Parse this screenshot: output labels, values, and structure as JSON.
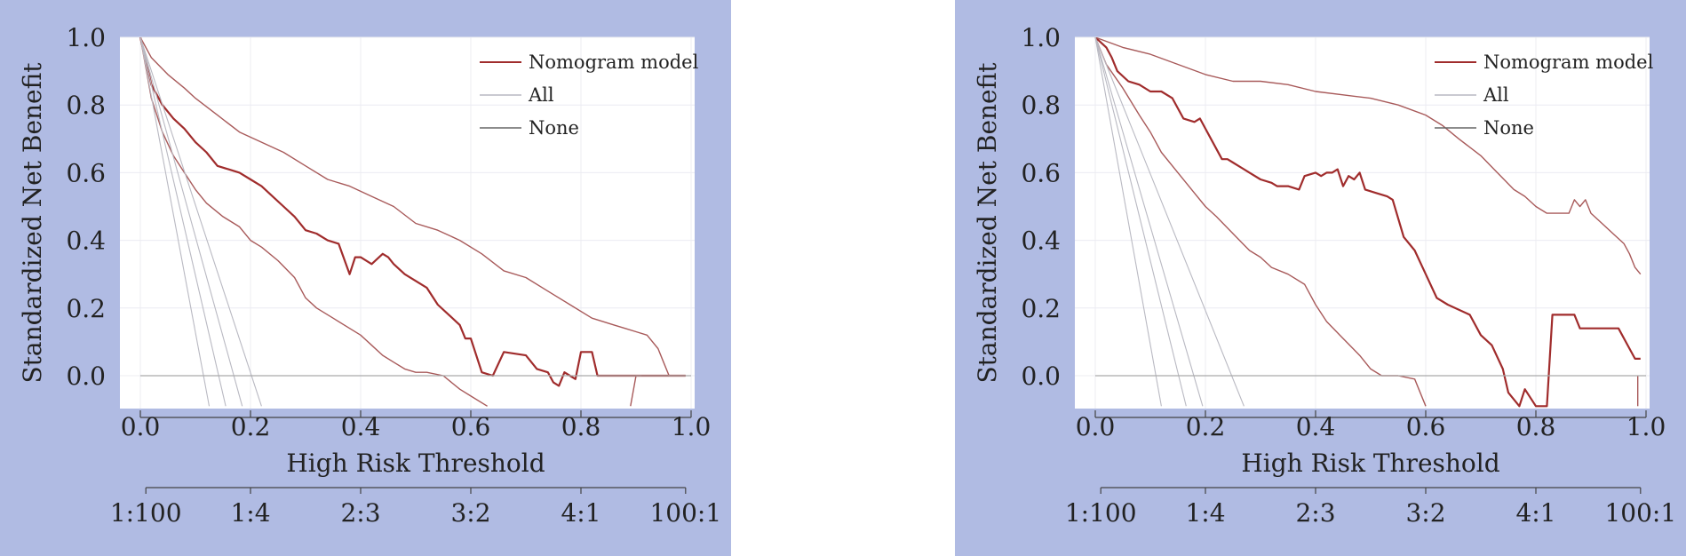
{
  "chart_data": [
    {
      "type": "line",
      "title": "",
      "xlabel": "High Risk Threshold",
      "ylabel": "Standardized Net Benefit",
      "xlim": [
        0,
        1
      ],
      "ylim": [
        -0.09,
        1.0
      ],
      "xticks": [
        "0.0",
        "0.2",
        "0.4",
        "0.6",
        "0.8",
        "1.0"
      ],
      "yticks": [
        "0.0",
        "0.2",
        "0.4",
        "0.6",
        "0.8",
        "1.0"
      ],
      "cost_benefit_label": "",
      "cost_benefit_ticks": [
        "1:100",
        "1:4",
        "2:3",
        "3:2",
        "4:1",
        "100:1"
      ],
      "cost_benefit_positions": [
        0.01,
        0.2,
        0.4,
        0.6,
        0.8,
        0.99
      ],
      "grid": true,
      "legend_position": "top-right",
      "legend": [
        {
          "label": "Nomogram model",
          "color": "#a02c2c"
        },
        {
          "label": "All",
          "color": "#b9b9c2"
        },
        {
          "label": "None",
          "color": "#666666"
        }
      ],
      "colors": {
        "model": "#a02c2c",
        "model_ci": "#a85a5a",
        "all": "#b9b9c2",
        "none": "#aaaaaa"
      },
      "series": [
        {
          "role": "model",
          "x": [
            0,
            0.02,
            0.04,
            0.06,
            0.08,
            0.1,
            0.12,
            0.14,
            0.16,
            0.18,
            0.2,
            0.22,
            0.24,
            0.26,
            0.28,
            0.3,
            0.32,
            0.34,
            0.36,
            0.38,
            0.39,
            0.4,
            0.42,
            0.44,
            0.45,
            0.46,
            0.48,
            0.5,
            0.52,
            0.54,
            0.56,
            0.58,
            0.59,
            0.6,
            0.62,
            0.64,
            0.66,
            0.7,
            0.72,
            0.74,
            0.75,
            0.76,
            0.77,
            0.78,
            0.79,
            0.8,
            0.82,
            0.83,
            0.86,
            0.9,
            0.94,
            0.99
          ],
          "y": [
            1.0,
            0.86,
            0.8,
            0.76,
            0.73,
            0.69,
            0.66,
            0.62,
            0.61,
            0.6,
            0.58,
            0.56,
            0.53,
            0.5,
            0.47,
            0.43,
            0.42,
            0.4,
            0.39,
            0.3,
            0.35,
            0.35,
            0.33,
            0.36,
            0.35,
            0.33,
            0.3,
            0.28,
            0.26,
            0.21,
            0.18,
            0.15,
            0.11,
            0.11,
            0.01,
            0.0,
            0.07,
            0.06,
            0.02,
            0.01,
            -0.02,
            -0.03,
            0.01,
            0.0,
            -0.01,
            0.07,
            0.07,
            0.0,
            0.0,
            0.0,
            0.0,
            0.0
          ]
        },
        {
          "role": "model_ci",
          "x": [
            0,
            0.02,
            0.05,
            0.08,
            0.1,
            0.14,
            0.18,
            0.22,
            0.26,
            0.3,
            0.34,
            0.38,
            0.42,
            0.46,
            0.5,
            0.54,
            0.58,
            0.62,
            0.66,
            0.7,
            0.74,
            0.78,
            0.82,
            0.86,
            0.88,
            0.9,
            0.92,
            0.94,
            0.95,
            0.96,
            0.99
          ],
          "y": [
            1.0,
            0.94,
            0.89,
            0.85,
            0.82,
            0.77,
            0.72,
            0.69,
            0.66,
            0.62,
            0.58,
            0.56,
            0.53,
            0.5,
            0.45,
            0.43,
            0.4,
            0.36,
            0.31,
            0.29,
            0.25,
            0.21,
            0.17,
            0.15,
            0.14,
            0.13,
            0.12,
            0.08,
            0.04,
            0.0,
            0.0
          ]
        },
        {
          "role": "model_ci",
          "x": [
            0,
            0.02,
            0.04,
            0.06,
            0.08,
            0.1,
            0.12,
            0.15,
            0.18,
            0.2,
            0.22,
            0.25,
            0.28,
            0.3,
            0.32,
            0.35,
            0.38,
            0.4,
            0.42,
            0.44,
            0.46,
            0.48,
            0.5,
            0.52,
            0.55,
            0.58,
            0.6,
            0.63
          ],
          "y": [
            1.0,
            0.82,
            0.72,
            0.65,
            0.6,
            0.55,
            0.51,
            0.47,
            0.44,
            0.4,
            0.38,
            0.34,
            0.29,
            0.23,
            0.2,
            0.17,
            0.14,
            0.12,
            0.09,
            0.06,
            0.04,
            0.02,
            0.01,
            0.01,
            0.0,
            -0.04,
            -0.06,
            -0.09
          ]
        },
        {
          "role": "model_ci",
          "x": [
            0.89,
            0.9,
            0.91
          ],
          "y": [
            -0.09,
            0.0,
            0.0
          ]
        },
        {
          "role": "all",
          "x": [
            0.0,
            0.125
          ],
          "y": [
            1.0,
            -0.09
          ]
        },
        {
          "role": "all",
          "x": [
            0.0,
            0.155
          ],
          "y": [
            1.0,
            -0.09
          ]
        },
        {
          "role": "all",
          "x": [
            0.0,
            0.185
          ],
          "y": [
            1.0,
            -0.09
          ]
        },
        {
          "role": "all",
          "x": [
            0.0,
            0.22
          ],
          "y": [
            1.0,
            -0.09
          ]
        },
        {
          "role": "none",
          "x": [
            0.0,
            1.0
          ],
          "y": [
            0.0,
            0.0
          ]
        }
      ]
    },
    {
      "type": "line",
      "title": "",
      "xlabel": "High Risk Threshold",
      "ylabel": "Standardized Net Benefit",
      "xlim": [
        0,
        1
      ],
      "ylim": [
        -0.09,
        1.0
      ],
      "xticks": [
        "0.0",
        "0.2",
        "0.4",
        "0.6",
        "0.8",
        "1.0"
      ],
      "yticks": [
        "0.0",
        "0.2",
        "0.4",
        "0.6",
        "0.8",
        "1.0"
      ],
      "cost_benefit_label": "",
      "cost_benefit_ticks": [
        "1:100",
        "1:4",
        "2:3",
        "3:2",
        "4:1",
        "100:1"
      ],
      "cost_benefit_positions": [
        0.01,
        0.2,
        0.4,
        0.6,
        0.8,
        0.99
      ],
      "grid": true,
      "legend_position": "top-right",
      "legend": [
        {
          "label": "Nomogram model",
          "color": "#a02c2c"
        },
        {
          "label": "All",
          "color": "#b9b9c2"
        },
        {
          "label": "None",
          "color": "#666666"
        }
      ],
      "colors": {
        "model": "#a02c2c",
        "model_ci": "#a85a5a",
        "all": "#b9b9c2",
        "none": "#aaaaaa"
      },
      "series": [
        {
          "role": "model",
          "x": [
            0,
            0.02,
            0.03,
            0.04,
            0.06,
            0.08,
            0.1,
            0.12,
            0.14,
            0.16,
            0.18,
            0.19,
            0.21,
            0.23,
            0.24,
            0.25,
            0.28,
            0.3,
            0.32,
            0.33,
            0.35,
            0.37,
            0.38,
            0.4,
            0.41,
            0.42,
            0.43,
            0.44,
            0.45,
            0.46,
            0.47,
            0.48,
            0.49,
            0.51,
            0.53,
            0.54,
            0.56,
            0.58,
            0.6,
            0.62,
            0.64,
            0.68,
            0.7,
            0.72,
            0.74,
            0.75,
            0.77,
            0.78,
            0.8,
            0.82,
            0.83,
            0.84,
            0.87,
            0.88,
            0.89,
            0.9,
            0.95,
            0.97,
            0.98,
            0.99
          ],
          "y": [
            1.0,
            0.97,
            0.94,
            0.9,
            0.87,
            0.86,
            0.84,
            0.84,
            0.82,
            0.76,
            0.75,
            0.76,
            0.7,
            0.64,
            0.64,
            0.63,
            0.6,
            0.58,
            0.57,
            0.56,
            0.56,
            0.55,
            0.59,
            0.6,
            0.59,
            0.6,
            0.6,
            0.61,
            0.56,
            0.59,
            0.58,
            0.6,
            0.55,
            0.54,
            0.53,
            0.52,
            0.41,
            0.37,
            0.3,
            0.23,
            0.21,
            0.18,
            0.12,
            0.09,
            0.02,
            -0.05,
            -0.09,
            -0.04,
            -0.09,
            -0.09,
            0.18,
            0.18,
            0.18,
            0.14,
            0.14,
            0.14,
            0.14,
            0.08,
            0.05,
            0.05
          ]
        },
        {
          "role": "model_ci",
          "x": [
            0,
            0.05,
            0.1,
            0.15,
            0.2,
            0.25,
            0.3,
            0.35,
            0.4,
            0.45,
            0.5,
            0.55,
            0.6,
            0.63,
            0.66,
            0.7,
            0.73,
            0.76,
            0.78,
            0.8,
            0.82,
            0.84,
            0.86,
            0.87,
            0.88,
            0.89,
            0.9,
            0.92,
            0.94,
            0.96,
            0.97,
            0.98,
            0.99
          ],
          "y": [
            1.0,
            0.97,
            0.95,
            0.92,
            0.89,
            0.87,
            0.87,
            0.86,
            0.84,
            0.83,
            0.82,
            0.8,
            0.77,
            0.74,
            0.7,
            0.65,
            0.6,
            0.55,
            0.53,
            0.5,
            0.48,
            0.48,
            0.48,
            0.52,
            0.5,
            0.52,
            0.48,
            0.45,
            0.42,
            0.39,
            0.36,
            0.32,
            0.3
          ]
        },
        {
          "role": "model_ci",
          "x": [
            0,
            0.02,
            0.05,
            0.08,
            0.1,
            0.12,
            0.15,
            0.18,
            0.2,
            0.22,
            0.25,
            0.28,
            0.3,
            0.32,
            0.35,
            0.38,
            0.4,
            0.42,
            0.45,
            0.48,
            0.5,
            0.52,
            0.55,
            0.58,
            0.6
          ],
          "y": [
            1.0,
            0.92,
            0.85,
            0.77,
            0.72,
            0.66,
            0.6,
            0.54,
            0.5,
            0.47,
            0.42,
            0.37,
            0.35,
            0.32,
            0.3,
            0.27,
            0.21,
            0.16,
            0.11,
            0.06,
            0.02,
            0.0,
            0.0,
            -0.01,
            -0.09
          ]
        },
        {
          "role": "model_ci",
          "x": [
            0.985,
            0.985
          ],
          "y": [
            -0.09,
            0.0
          ]
        },
        {
          "role": "all",
          "x": [
            0.0,
            0.12
          ],
          "y": [
            1.0,
            -0.09
          ]
        },
        {
          "role": "all",
          "x": [
            0.0,
            0.165
          ],
          "y": [
            1.0,
            -0.09
          ]
        },
        {
          "role": "all",
          "x": [
            0.0,
            0.195
          ],
          "y": [
            1.0,
            -0.09
          ]
        },
        {
          "role": "all",
          "x": [
            0.0,
            0.27
          ],
          "y": [
            1.0,
            -0.09
          ]
        },
        {
          "role": "none",
          "x": [
            0.0,
            1.0
          ],
          "y": [
            0.0,
            0.0
          ]
        }
      ]
    }
  ]
}
